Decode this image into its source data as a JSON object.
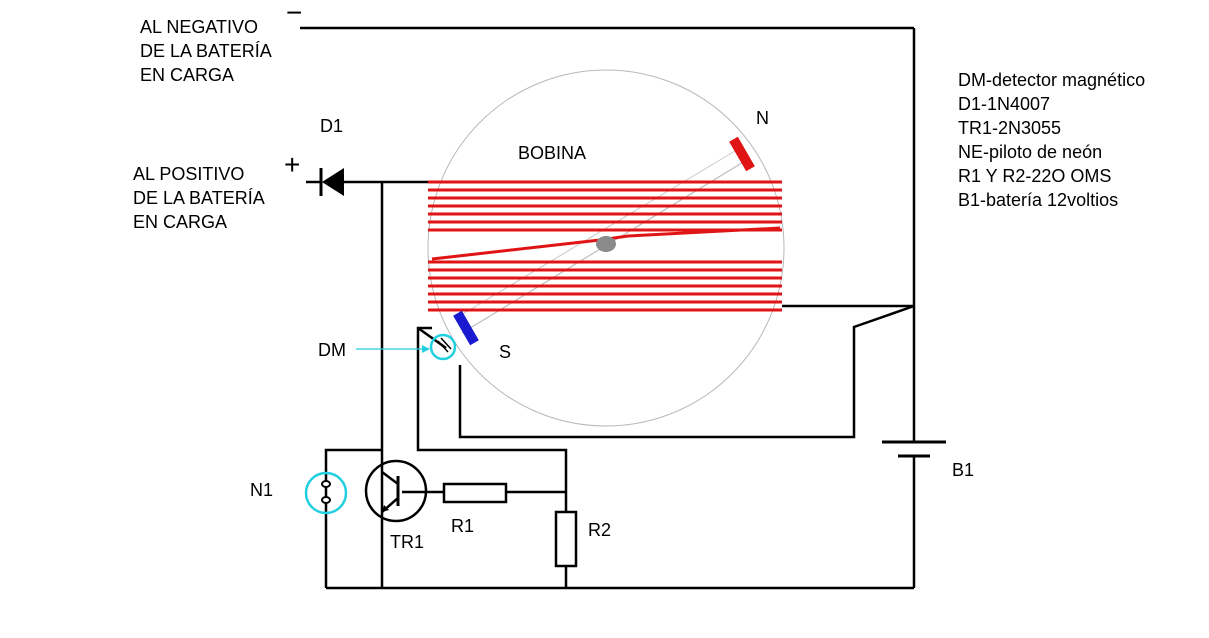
{
  "labels": {
    "negative": [
      "AL NEGATIVO",
      "DE LA BATERÍA",
      "EN CARGA"
    ],
    "positive": [
      "AL POSITIVO",
      "DE LA BATERÍA",
      "EN CARGA"
    ],
    "minus_sign": "−",
    "plus_sign": "+",
    "d1": "D1",
    "bobina": "BOBINA",
    "north": "N",
    "south": "S",
    "dm": "DM",
    "n1": "N1",
    "tr1": "TR1",
    "r1": "R1",
    "r2": "R2",
    "b1": "B1"
  },
  "legend": [
    "DM-detector magnético",
    "D1-1N4007",
    "TR1-2N3055",
    "NE-piloto de neón",
    "R1 Y R2-22O OMS",
    "B1-batería 12voltios"
  ],
  "colors": {
    "wire": "#000000",
    "coil": "#e01414",
    "north_magnet": "#e01414",
    "south_magnet": "#1a1ad0",
    "detector_ring": "#22cfe0",
    "rotor_circle": "#b8b8b8",
    "pivot": "#8a8a8a"
  }
}
